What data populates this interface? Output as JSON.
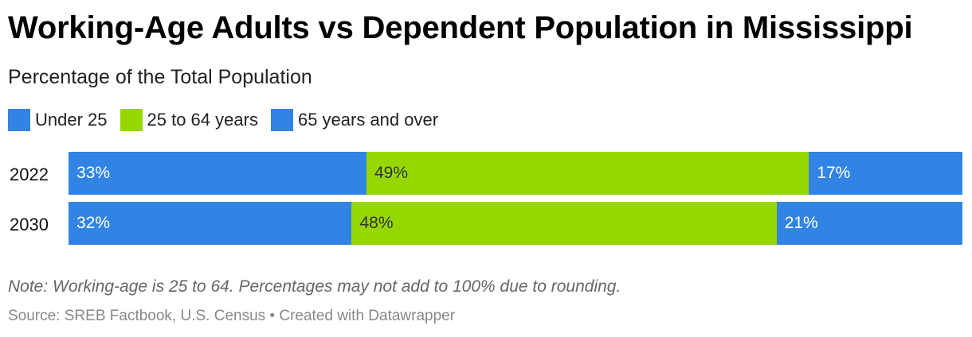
{
  "title": "Working-Age Adults vs Dependent Population in Mississippi",
  "subtitle": "Percentage of the Total Population",
  "note": "Note: Working-age is 25 to 64. Percentages may not add to 100% due to rounding.",
  "source": "Source: SREB Factbook, U.S. Census • Created with Datawrapper",
  "colors": {
    "blue": "#3184e4",
    "green": "#97d700"
  },
  "chart_data": {
    "type": "bar",
    "orientation": "horizontal",
    "stacked": true,
    "categories": [
      "2022",
      "2030"
    ],
    "series": [
      {
        "name": "Under 25",
        "color": "#3184e4",
        "values": [
          33,
          32
        ],
        "labels": [
          "33%",
          "32%"
        ]
      },
      {
        "name": "25 to 64 years",
        "color": "#97d700",
        "values": [
          49,
          48
        ],
        "labels": [
          "49%",
          "48%"
        ]
      },
      {
        "name": "65 years and over",
        "color": "#3184e4",
        "values": [
          17,
          21
        ],
        "labels": [
          "17%",
          "21%"
        ]
      }
    ],
    "xlim": [
      0,
      100
    ],
    "grid": false,
    "legend": "top-left"
  }
}
